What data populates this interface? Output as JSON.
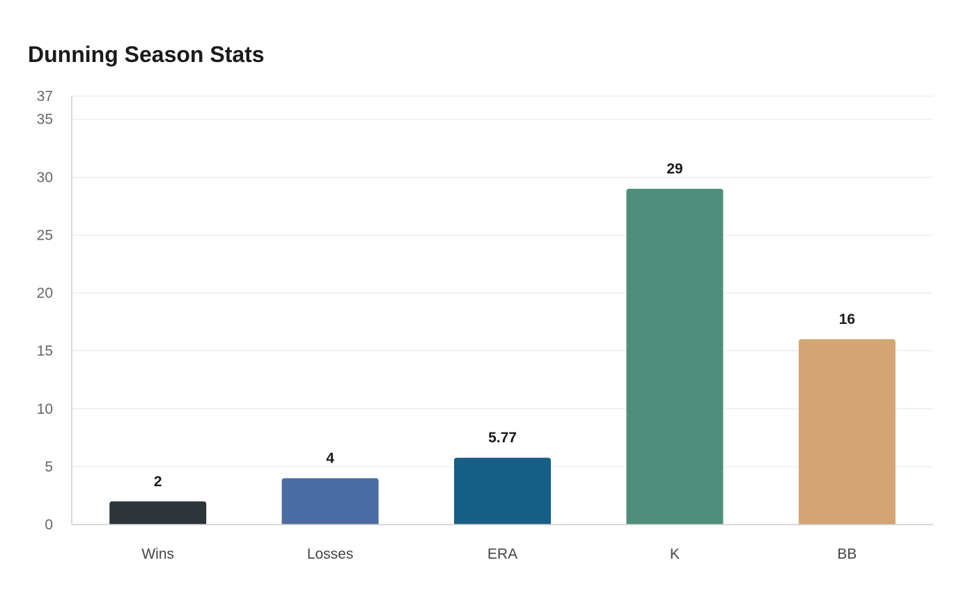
{
  "chart_data": {
    "type": "bar",
    "title": "Dunning Season Stats",
    "xlabel": "",
    "ylabel": "",
    "categories": [
      "Wins",
      "Losses",
      "ERA",
      "K",
      "BB"
    ],
    "values": [
      2,
      4,
      5.77,
      29,
      16
    ],
    "value_labels": [
      "2",
      "4",
      "5.77",
      "29",
      "16"
    ],
    "colors": [
      "#2e3538",
      "#4a6ca3",
      "#175f86",
      "#4f8e7b",
      "#d3a574"
    ],
    "ylim": [
      0,
      37
    ],
    "yticks": [
      0,
      5,
      10,
      15,
      20,
      25,
      30,
      35,
      37
    ],
    "grid": true,
    "legend": "none"
  }
}
